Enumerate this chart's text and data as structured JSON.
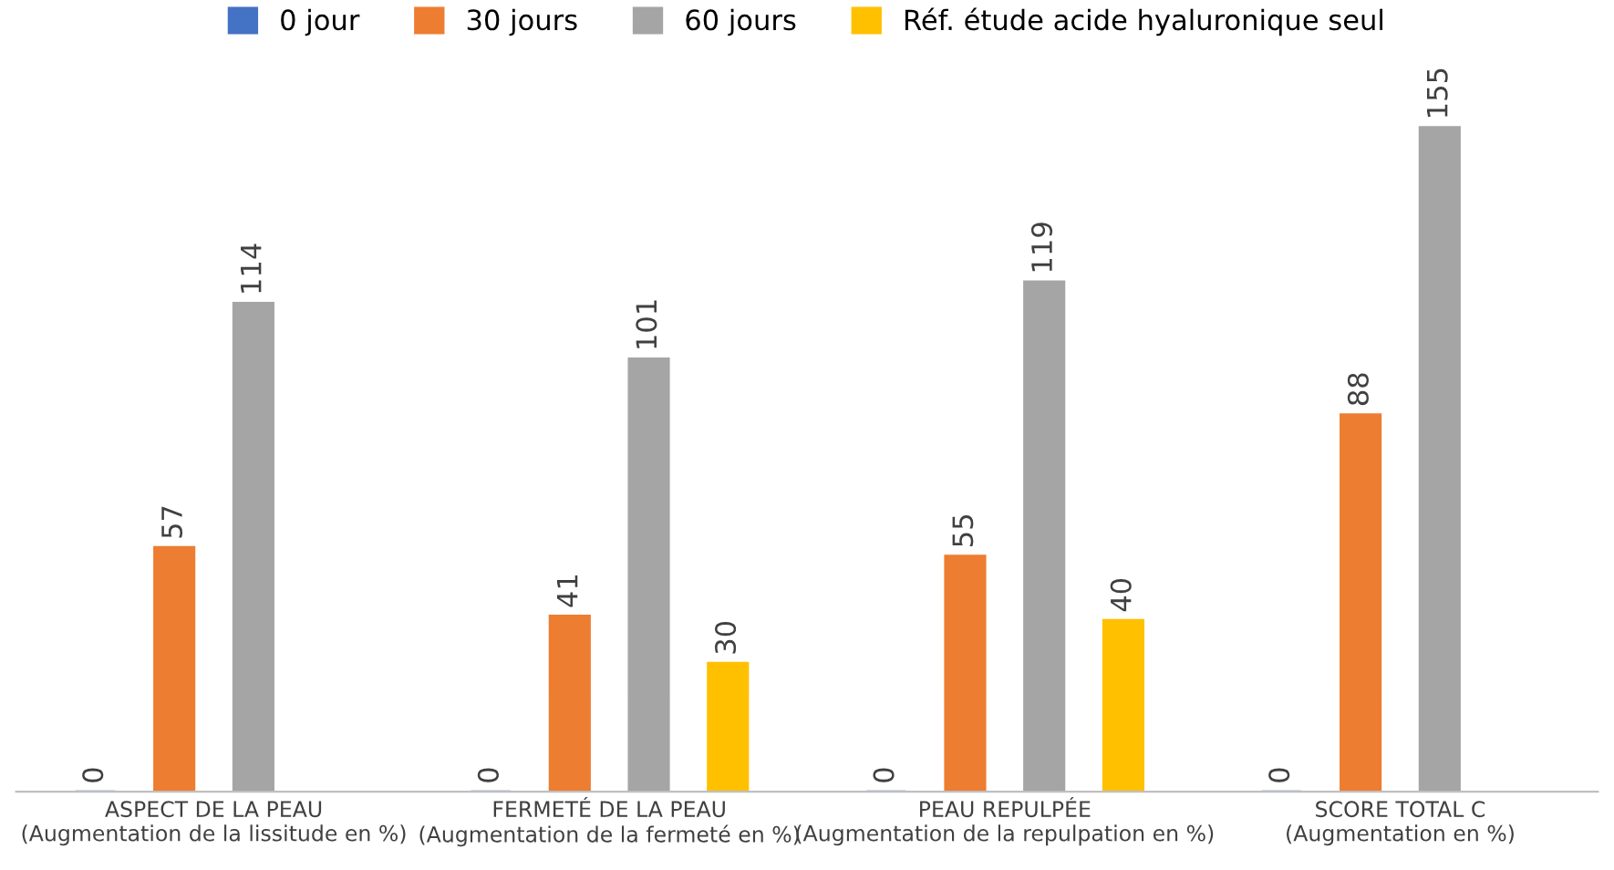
{
  "chart_data": {
    "type": "bar",
    "categories": [
      "ASPECT DE LA PEAU\n(Augmentation de la lissitude en %)",
      "FERMETÉ DE LA PEAU\n(Augmentation de la fermeté en %)",
      "PEAU REPULPÉE\n(Augmentation de la repulpation en %)",
      "SCORE TOTAL C\n(Augmentation en %)"
    ],
    "series": [
      {
        "name": "0 jour",
        "color": "#4472c4",
        "values": [
          0,
          0,
          0,
          0
        ]
      },
      {
        "name": "30 jours",
        "color": "#ed7d31",
        "values": [
          57,
          41,
          55,
          88
        ]
      },
      {
        "name": "60 jours",
        "color": "#a5a5a5",
        "values": [
          114,
          101,
          119,
          155
        ]
      },
      {
        "name": "Réf. étude acide hyaluronique seul",
        "color": "#ffc000",
        "values": [
          null,
          30,
          40,
          null
        ]
      }
    ],
    "data_labels": true,
    "legend": "top",
    "tick_labels": "x"
  }
}
